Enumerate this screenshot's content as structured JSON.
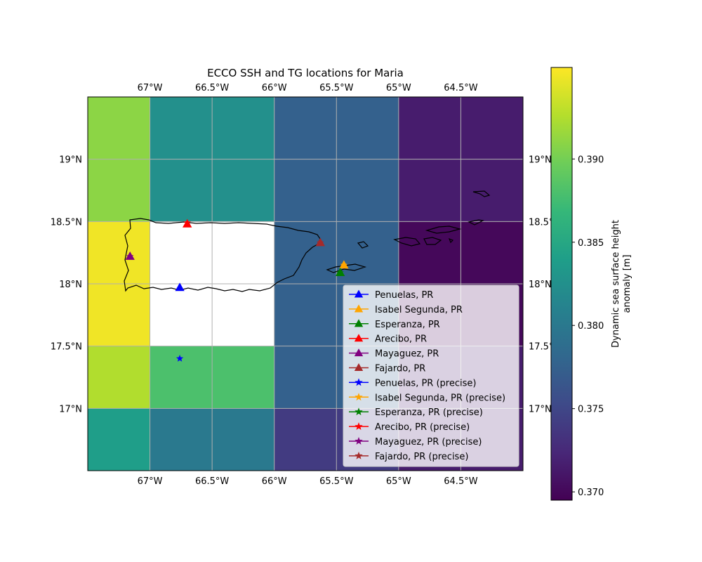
{
  "title": "ECCO SSH and TG locations for Maria",
  "map": {
    "lon_range": [
      -67.5,
      -64.0
    ],
    "lat_range": [
      16.5,
      19.5
    ],
    "gridlines": true,
    "lon_ticks": [
      {
        "value": -67.0,
        "label": "67°W"
      },
      {
        "value": -66.5,
        "label": "66.5°W"
      },
      {
        "value": -66.0,
        "label": "66°W"
      },
      {
        "value": -65.5,
        "label": "65.5°W"
      },
      {
        "value": -65.0,
        "label": "65°W"
      },
      {
        "value": -64.5,
        "label": "64.5°W"
      }
    ],
    "lat_ticks": [
      {
        "value": 19.0,
        "label": "19°N"
      },
      {
        "value": 18.5,
        "label": "18.5°N"
      },
      {
        "value": 18.0,
        "label": "18°N"
      },
      {
        "value": 17.5,
        "label": "17.5°N"
      },
      {
        "value": 17.0,
        "label": "17°N"
      }
    ]
  },
  "colorbar": {
    "label_line1": "Dynamic sea surface height",
    "label_line2": "anomaly [m]",
    "colormap": "viridis",
    "range": [
      0.3695,
      0.3955
    ],
    "ticks": [
      {
        "value": 0.37,
        "label": "0.370"
      },
      {
        "value": 0.375,
        "label": "0.375"
      },
      {
        "value": 0.38,
        "label": "0.380"
      },
      {
        "value": 0.385,
        "label": "0.385"
      },
      {
        "value": 0.39,
        "label": "0.390"
      }
    ]
  },
  "chart_data": {
    "type": "heatmap",
    "title": "ECCO SSH and TG locations for Maria",
    "lon_edges": [
      -67.5,
      -67.0,
      -66.0,
      -65.0,
      -64.0
    ],
    "lat_edges": [
      19.5,
      18.5,
      17.5,
      17.0,
      16.5
    ],
    "grid_values": [
      [
        0.391,
        0.3825,
        0.3775,
        0.3715
      ],
      [
        0.395,
        null,
        0.3775,
        0.37
      ],
      [
        0.3925,
        0.388,
        0.3775,
        0.3715
      ],
      [
        0.384,
        0.38,
        0.374,
        0.3715
      ]
    ],
    "series": [
      {
        "name": "Penuelas, PR",
        "color": "#0000ff",
        "marker": "triangle",
        "lon": -66.76,
        "lat": 17.97
      },
      {
        "name": "Isabel Segunda, PR",
        "color": "#ffa500",
        "marker": "triangle",
        "lon": -65.44,
        "lat": 18.15
      },
      {
        "name": "Esperanza, PR",
        "color": "#008000",
        "marker": "triangle",
        "lon": -65.47,
        "lat": 18.09
      },
      {
        "name": "Arecibo, PR",
        "color": "#ff0000",
        "marker": "triangle",
        "lon": -66.7,
        "lat": 18.48
      },
      {
        "name": "Mayaguez, PR",
        "color": "#800080",
        "marker": "triangle",
        "lon": -67.16,
        "lat": 18.22
      },
      {
        "name": "Fajardo, PR",
        "color": "#a52a2a",
        "marker": "triangle",
        "lon": -65.63,
        "lat": 18.33
      },
      {
        "name": "Penuelas, PR (precise)",
        "color": "#0000ff",
        "marker": "star",
        "lon": -66.76,
        "lat": 17.4
      },
      {
        "name": "Isabel Segunda, PR (precise)",
        "color": "#ffa500",
        "marker": "star",
        "lon": -65.44,
        "lat": 18.15
      },
      {
        "name": "Esperanza, PR (precise)",
        "color": "#008000",
        "marker": "star",
        "lon": -65.47,
        "lat": 18.09
      },
      {
        "name": "Arecibo, PR (precise)",
        "color": "#ff0000",
        "marker": "star",
        "lon": -66.7,
        "lat": 18.49
      },
      {
        "name": "Mayaguez, PR (precise)",
        "color": "#800080",
        "marker": "star",
        "lon": -67.16,
        "lat": 18.22
      },
      {
        "name": "Fajardo, PR (precise)",
        "color": "#a52a2a",
        "marker": "star",
        "lon": -65.63,
        "lat": 18.33
      }
    ],
    "legend_position": "lower-right"
  }
}
